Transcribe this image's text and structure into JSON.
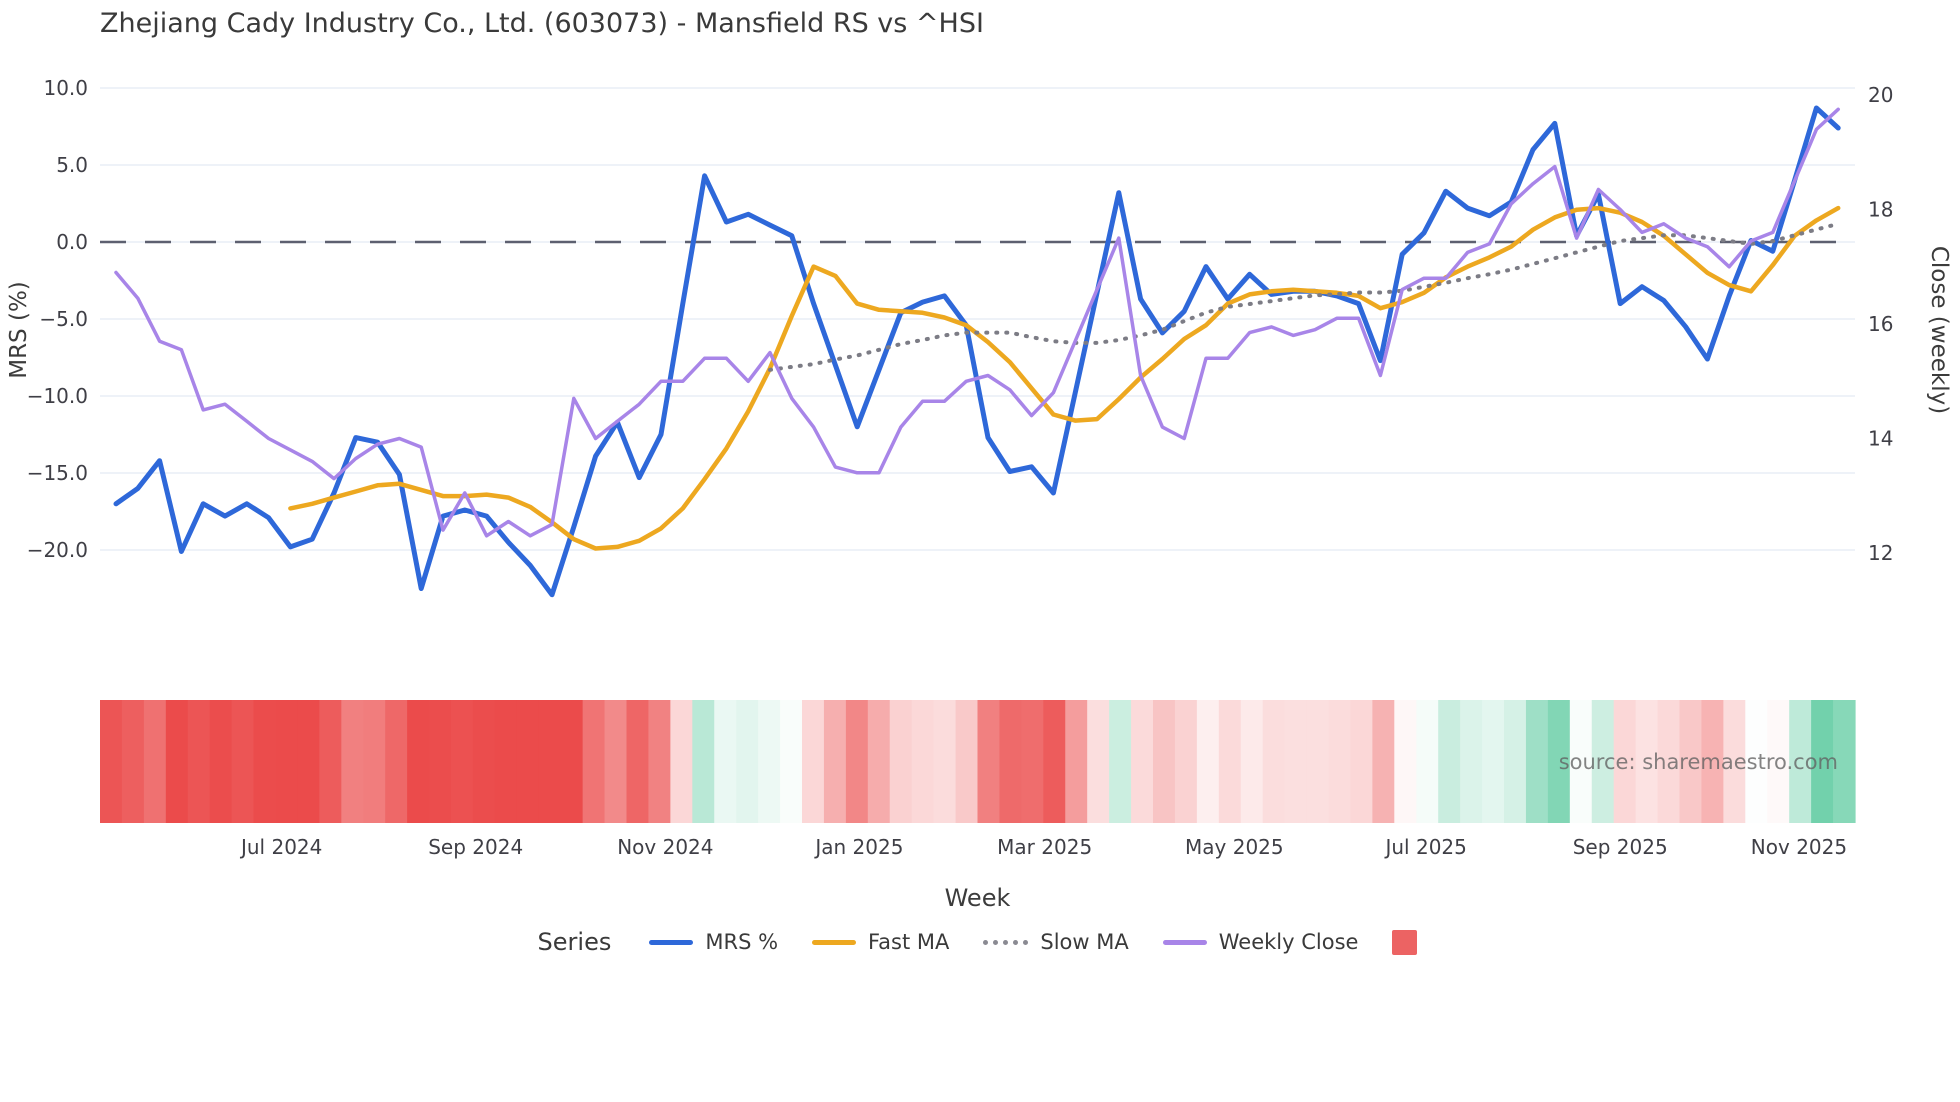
{
  "title": "Zhejiang Cady Industry Co., Ltd. (603073) - Mansfield RS vs ^HSI",
  "source": "source: sharemaestro.com",
  "legend": {
    "title": "Series",
    "items": [
      {
        "label": "MRS %",
        "swatch": "line",
        "color": "#2e68d9"
      },
      {
        "label": "Fast MA",
        "swatch": "line",
        "color": "#eda820"
      },
      {
        "label": "Slow MA",
        "swatch": "dots",
        "color": "#8a8a92"
      },
      {
        "label": "Weekly Close",
        "swatch": "line",
        "color": "#a885e8"
      },
      {
        "label": "",
        "swatch": "square",
        "color": "#ec6363"
      }
    ]
  },
  "chart_data": {
    "type": "line",
    "subtype": "dual-axis weekly lines with MRS heatmap strip",
    "x_axis": {
      "title": "Week",
      "ticks": [
        {
          "label": "Jul 2024",
          "week": 7.6
        },
        {
          "label": "Sep 2024",
          "week": 16.5
        },
        {
          "label": "Nov 2024",
          "week": 25.2
        },
        {
          "label": "Jan 2025",
          "week": 34.1
        },
        {
          "label": "Mar 2025",
          "week": 42.6
        },
        {
          "label": "May 2025",
          "week": 51.3
        },
        {
          "label": "Jul 2025",
          "week": 60.1
        },
        {
          "label": "Sep 2025",
          "week": 69.0
        },
        {
          "label": "Nov 2025",
          "week": 77.2
        }
      ]
    },
    "left_axis": {
      "title": "MRS (%)",
      "tick_values": [
        10,
        5,
        0,
        -5,
        -10,
        -15,
        -20
      ],
      "tick_labels": [
        "10.0",
        "5.0",
        "0.0",
        "−5.0",
        "−10.0",
        "−15.0",
        "−20.0"
      ],
      "range": [
        -25.5,
        11.5
      ],
      "zero_line": true,
      "grid": true
    },
    "right_axis": {
      "title": "Close (weekly)",
      "tick_values": [
        20,
        18,
        16,
        14,
        12
      ],
      "tick_labels": [
        "20",
        "18",
        "16",
        "14",
        "12"
      ],
      "range": [
        11.4,
        20.6
      ],
      "grid": false
    },
    "series": [
      {
        "name": "MRS %",
        "axis": "left",
        "color": "#2e68d9",
        "style": "solid",
        "width": 5,
        "values": [
          -17.0,
          -16.0,
          -14.2,
          -20.1,
          -17.0,
          -17.8,
          -17.0,
          -17.9,
          -19.8,
          -19.3,
          -16.3,
          -12.7,
          -13.0,
          -15.1,
          -22.5,
          -17.8,
          -17.4,
          -17.8,
          -19.5,
          -21.0,
          -22.9,
          -18.5,
          -13.9,
          -11.7,
          -15.3,
          -12.5,
          -4.0,
          4.3,
          1.3,
          1.8,
          1.1,
          0.4,
          -4.0,
          -8.0,
          -12.0,
          -8.3,
          -4.6,
          -3.9,
          -3.5,
          -5.4,
          -12.7,
          -14.9,
          -14.6,
          -16.3,
          -9.8,
          -3.3,
          3.2,
          -3.7,
          -5.9,
          -4.5,
          -1.6,
          -3.7,
          -2.1,
          -3.4,
          -3.2,
          -3.2,
          -3.5,
          -4.0,
          -7.7,
          -0.8,
          0.6,
          3.3,
          2.2,
          1.7,
          2.6,
          6.0,
          7.7,
          0.4,
          3.1,
          -4.0,
          -2.9,
          -3.8,
          -5.5,
          -7.6,
          -3.5,
          0.1,
          -0.6,
          4.0,
          8.7,
          7.4
        ]
      },
      {
        "name": "Fast MA",
        "axis": "left",
        "color": "#eda820",
        "style": "solid",
        "width": 4.5,
        "values": [
          null,
          null,
          null,
          null,
          null,
          null,
          null,
          null,
          -17.3,
          -17.0,
          -16.6,
          -16.2,
          -15.8,
          -15.7,
          -16.1,
          -16.5,
          -16.5,
          -16.4,
          -16.6,
          -17.2,
          -18.2,
          -19.3,
          -19.9,
          -19.8,
          -19.4,
          -18.6,
          -17.3,
          -15.4,
          -13.4,
          -11.0,
          -8.2,
          -4.8,
          -1.6,
          -2.2,
          -4.0,
          -4.4,
          -4.5,
          -4.6,
          -4.9,
          -5.4,
          -6.5,
          -7.8,
          -9.5,
          -11.2,
          -11.6,
          -11.5,
          -10.2,
          -8.8,
          -7.6,
          -6.3,
          -5.4,
          -4.0,
          -3.4,
          -3.2,
          -3.1,
          -3.2,
          -3.3,
          -3.5,
          -4.3,
          -3.9,
          -3.3,
          -2.3,
          -1.6,
          -1.0,
          -0.3,
          0.8,
          1.6,
          2.1,
          2.2,
          1.9,
          1.3,
          0.4,
          -0.8,
          -2.0,
          -2.8,
          -3.2,
          -1.5,
          0.4,
          1.4,
          2.2
        ]
      },
      {
        "name": "Slow MA",
        "axis": "right",
        "color": "#7c7c85",
        "style": "dotted",
        "width": 4,
        "values": [
          null,
          null,
          null,
          null,
          null,
          null,
          null,
          null,
          null,
          null,
          null,
          null,
          null,
          null,
          null,
          null,
          null,
          null,
          null,
          null,
          null,
          null,
          null,
          null,
          null,
          null,
          null,
          null,
          null,
          null,
          15.2,
          15.25,
          15.3,
          15.38,
          15.45,
          15.55,
          15.65,
          15.72,
          15.8,
          15.85,
          15.85,
          15.85,
          15.77,
          15.7,
          15.67,
          15.67,
          15.72,
          15.8,
          15.9,
          16.05,
          16.2,
          16.3,
          16.35,
          16.4,
          16.45,
          16.5,
          16.52,
          16.55,
          16.55,
          16.58,
          16.65,
          16.72,
          16.8,
          16.87,
          16.95,
          17.05,
          17.15,
          17.25,
          17.35,
          17.45,
          17.5,
          17.55,
          17.55,
          17.5,
          17.45,
          17.4,
          17.45,
          17.55,
          17.65,
          17.75
        ]
      },
      {
        "name": "Weekly Close",
        "axis": "right",
        "color": "#a885e8",
        "style": "solid",
        "width": 3.5,
        "values": [
          16.9,
          16.45,
          15.7,
          15.55,
          14.5,
          14.6,
          14.3,
          14.0,
          13.8,
          13.6,
          13.3,
          13.65,
          13.9,
          14.0,
          13.85,
          12.4,
          13.05,
          12.3,
          12.55,
          12.3,
          12.5,
          14.7,
          14.0,
          14.3,
          14.6,
          15.0,
          15.0,
          15.4,
          15.4,
          15.0,
          15.5,
          14.7,
          14.2,
          13.5,
          13.4,
          13.4,
          14.2,
          14.65,
          14.65,
          15.0,
          15.1,
          14.85,
          14.4,
          14.8,
          15.7,
          16.6,
          17.5,
          15.1,
          14.2,
          14.0,
          15.4,
          15.4,
          15.85,
          15.95,
          15.8,
          15.9,
          16.1,
          16.1,
          15.1,
          16.6,
          16.8,
          16.8,
          17.25,
          17.4,
          18.1,
          18.45,
          18.75,
          17.5,
          18.35,
          18.0,
          17.6,
          17.75,
          17.5,
          17.35,
          17.0,
          17.45,
          17.6,
          18.5,
          19.4,
          19.75
        ]
      }
    ],
    "heatmap": {
      "source_series": "MRS %",
      "negative_color": "#eb4b4b",
      "positive_color": "#6dcfa9",
      "neg_span": 18,
      "pos_span": 9
    },
    "colors": {
      "grid": "#e9edf5",
      "zero_line": "#5d6070",
      "tick_text": "#3f3f46"
    }
  }
}
